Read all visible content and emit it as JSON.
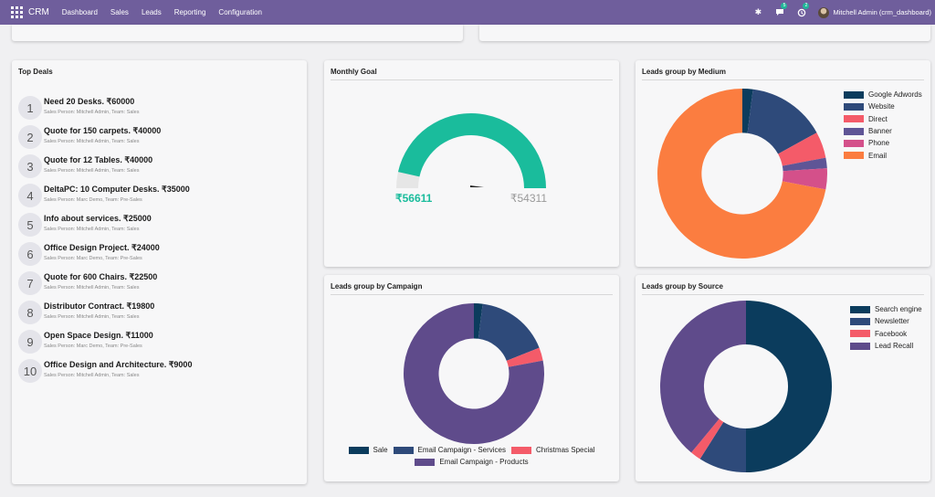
{
  "navbar": {
    "brand": "CRM",
    "menu": [
      "Dashboard",
      "Sales",
      "Leads",
      "Reporting",
      "Configuration"
    ],
    "messages_count": "5",
    "activities_count": "2",
    "user": "Mitchell Admin (crm_dashboard)"
  },
  "top_deals": {
    "title": "Top Deals",
    "items": [
      {
        "rank": "1",
        "title": "Need 20 Desks. ₹60000",
        "sub": "Sales Person: Mitchell Admin,  Team: Sales"
      },
      {
        "rank": "2",
        "title": "Quote for 150 carpets. ₹40000",
        "sub": "Sales Person: Mitchell Admin,  Team: Sales"
      },
      {
        "rank": "3",
        "title": "Quote for 12 Tables. ₹40000",
        "sub": "Sales Person: Mitchell Admin,  Team: Sales"
      },
      {
        "rank": "4",
        "title": "DeltaPC: 10 Computer Desks. ₹35000",
        "sub": "Sales Person: Marc Demo,  Team: Pre-Sales"
      },
      {
        "rank": "5",
        "title": "Info about services. ₹25000",
        "sub": "Sales Person: Mitchell Admin,  Team: Sales"
      },
      {
        "rank": "6",
        "title": "Office Design Project. ₹24000",
        "sub": "Sales Person: Marc Demo,  Team: Pre-Sales"
      },
      {
        "rank": "7",
        "title": "Quote for 600 Chairs. ₹22500",
        "sub": "Sales Person: Mitchell Admin,  Team: Sales"
      },
      {
        "rank": "8",
        "title": "Distributor Contract. ₹19800",
        "sub": "Sales Person: Mitchell Admin,  Team: Sales"
      },
      {
        "rank": "9",
        "title": "Open Space Design. ₹11000",
        "sub": "Sales Person: Marc Demo,  Team: Pre-Sales"
      },
      {
        "rank": "10",
        "title": "Office Design and Architecture. ₹9000",
        "sub": "Sales Person: Mitchell Admin,  Team: Sales"
      }
    ]
  },
  "monthly_goal": {
    "title": "Monthly Goal",
    "achieved_label": "₹56611",
    "target_label": "₹54311",
    "colors": {
      "achieved": "#1abc9c",
      "remaining": "#e6e6e6",
      "achieved_text": "#1abc9c",
      "target_text": "#999999"
    }
  },
  "chart_data": [
    {
      "id": "medium",
      "type": "pie",
      "title": "Leads group by Medium",
      "hole": 0.48,
      "categories": [
        "Google Adwords",
        "Website",
        "Direct",
        "Banner",
        "Phone",
        "Email"
      ],
      "values": [
        2,
        15,
        5,
        2,
        4,
        72
      ],
      "colors": [
        "#0b3c5d",
        "#2e4a7a",
        "#f45b69",
        "#5f5596",
        "#d4508a",
        "#fb7d40"
      ],
      "legend": "right"
    },
    {
      "id": "campaign",
      "type": "pie",
      "title": "Leads group by Campaign",
      "hole": 0.5,
      "categories": [
        "Sale",
        "Email Campaign - Services",
        "Christmas Special",
        "Email Campaign - Products"
      ],
      "values": [
        2,
        17,
        3,
        78
      ],
      "colors": [
        "#0b3c5d",
        "#2e4a7a",
        "#f45b69",
        "#5f4b8b"
      ],
      "legend": "bottom"
    },
    {
      "id": "source",
      "type": "pie",
      "title": "Leads group by Source",
      "hole": 0.49,
      "categories": [
        "Search engine",
        "Newsletter",
        "Facebook",
        "Lead Recall"
      ],
      "values": [
        50,
        9,
        2,
        39
      ],
      "colors": [
        "#0b3c5d",
        "#2e4a7a",
        "#f45b69",
        "#5f4b8b"
      ],
      "legend": "right"
    }
  ]
}
